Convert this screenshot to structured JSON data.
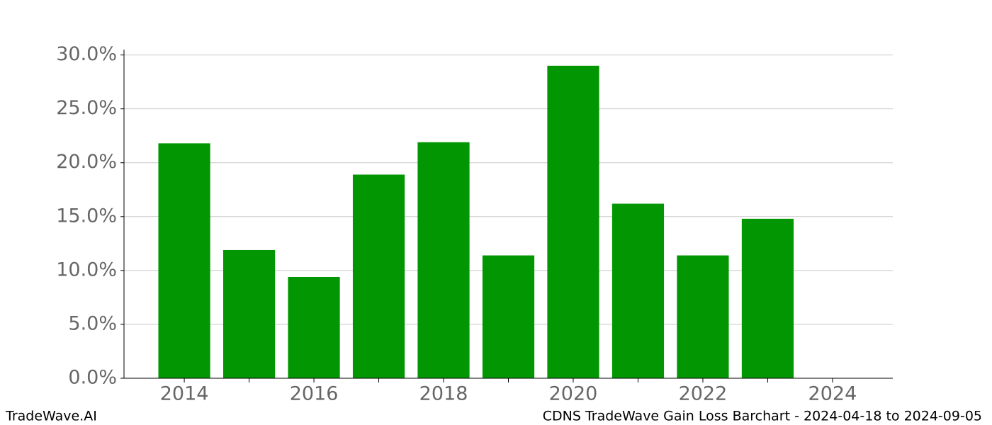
{
  "chart_data": {
    "type": "bar",
    "title": "CDNS TradeWave Gain Loss Barchart - 2024-04-18 to 2024-09-05",
    "watermark": "TradeWave.AI",
    "x": [
      2014,
      2015,
      2016,
      2017,
      2018,
      2019,
      2020,
      2021,
      2022,
      2023
    ],
    "values": [
      21.8,
      11.9,
      9.4,
      18.9,
      21.9,
      11.4,
      29.0,
      16.2,
      11.4,
      14.8
    ],
    "color": "#029702",
    "xlim": [
      2013.07,
      2024.93
    ],
    "xticks": [
      2014,
      2016,
      2018,
      2020,
      2022,
      2024
    ],
    "xminorticks": [
      2015,
      2017,
      2019,
      2021,
      2023
    ],
    "ylim": [
      0,
      30.5
    ],
    "yticks": [
      {
        "value": 0,
        "label": "0.0%"
      },
      {
        "value": 5,
        "label": "5.0%"
      },
      {
        "value": 10,
        "label": "10.0%"
      },
      {
        "value": 15,
        "label": "15.0%"
      },
      {
        "value": 20,
        "label": "20.0%"
      },
      {
        "value": 25,
        "label": "25.0%"
      },
      {
        "value": 30,
        "label": "30.0%"
      }
    ],
    "grid": true
  }
}
